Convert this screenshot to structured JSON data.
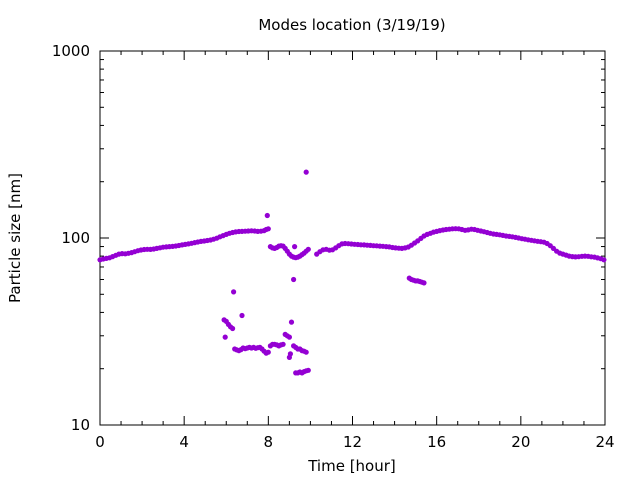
{
  "chart_data": {
    "type": "scatter",
    "title": "Modes location (3/19/19)",
    "xlabel": "Time [hour]",
    "ylabel": "Particle size [nm]",
    "xlim": [
      0,
      24
    ],
    "ylim": [
      10,
      1000
    ],
    "yscale": "log",
    "xticks": [
      0,
      4,
      8,
      12,
      16,
      20,
      24
    ],
    "yticks": [
      10,
      100,
      1000
    ],
    "grid": false,
    "legend": "none",
    "marker_color": "#9400D3",
    "series": [
      {
        "points": [
          [
            0.0,
            76.5
          ],
          [
            0.15,
            77.2
          ],
          [
            0.3,
            77.8
          ],
          [
            0.45,
            78.4
          ],
          [
            0.6,
            79.5
          ],
          [
            0.75,
            80.8
          ],
          [
            0.9,
            82.0
          ],
          [
            1.05,
            82.5
          ],
          [
            1.2,
            82.3
          ],
          [
            1.35,
            82.8
          ],
          [
            1.5,
            83.5
          ],
          [
            1.65,
            84.5
          ],
          [
            1.8,
            85.5
          ],
          [
            1.95,
            86.3
          ],
          [
            2.1,
            86.8
          ],
          [
            2.25,
            87.0
          ],
          [
            2.4,
            86.9
          ],
          [
            2.55,
            87.3
          ],
          [
            2.7,
            88.0
          ],
          [
            2.85,
            88.6
          ],
          [
            3.0,
            89.3
          ],
          [
            3.15,
            89.6
          ],
          [
            3.3,
            89.9
          ],
          [
            3.45,
            90.2
          ],
          [
            3.6,
            90.6
          ],
          [
            3.75,
            91.2
          ],
          [
            3.9,
            91.8
          ],
          [
            4.05,
            92.4
          ],
          [
            4.2,
            93.0
          ],
          [
            4.35,
            93.7
          ],
          [
            4.5,
            94.5
          ],
          [
            4.65,
            95.2
          ],
          [
            4.8,
            95.9
          ],
          [
            4.95,
            96.4
          ],
          [
            5.1,
            97.0
          ],
          [
            5.25,
            97.6
          ],
          [
            5.4,
            98.5
          ],
          [
            5.55,
            99.8
          ],
          [
            5.7,
            101.5
          ],
          [
            5.85,
            103.0
          ],
          [
            6.0,
            104.5
          ],
          [
            6.15,
            106.0
          ],
          [
            6.3,
            107.0
          ],
          [
            6.45,
            107.8
          ],
          [
            6.6,
            108.3
          ],
          [
            6.75,
            108.5
          ],
          [
            6.9,
            108.8
          ],
          [
            7.05,
            109.0
          ],
          [
            7.2,
            109.3
          ],
          [
            7.35,
            109.0
          ],
          [
            7.5,
            108.5
          ],
          [
            7.65,
            108.8
          ],
          [
            7.8,
            109.5
          ],
          [
            7.9,
            111.0
          ],
          [
            8.0,
            112.0
          ],
          [
            8.1,
            90.0
          ],
          [
            8.2,
            88.5
          ],
          [
            8.3,
            88.0
          ],
          [
            8.4,
            89.0
          ],
          [
            8.5,
            90.5
          ],
          [
            8.6,
            91.0
          ],
          [
            8.7,
            90.5
          ],
          [
            8.8,
            88.0
          ],
          [
            8.9,
            85.0
          ],
          [
            9.0,
            82.0
          ],
          [
            9.1,
            80.0
          ],
          [
            9.2,
            79.0
          ],
          [
            9.3,
            78.5
          ],
          [
            9.4,
            79.0
          ],
          [
            9.5,
            80.0
          ],
          [
            9.6,
            81.5
          ],
          [
            9.7,
            83.0
          ],
          [
            9.8,
            85.0
          ],
          [
            9.9,
            87.0
          ],
          [
            10.3,
            82.0
          ],
          [
            10.45,
            84.5
          ],
          [
            10.6,
            86.5
          ],
          [
            10.75,
            87.0
          ],
          [
            10.9,
            86.0
          ],
          [
            11.05,
            86.5
          ],
          [
            11.2,
            88.5
          ],
          [
            11.35,
            91.0
          ],
          [
            11.5,
            93.0
          ],
          [
            11.65,
            93.5
          ],
          [
            11.8,
            93.2
          ],
          [
            11.95,
            92.9
          ],
          [
            12.1,
            92.5
          ],
          [
            12.25,
            92.3
          ],
          [
            12.4,
            92.0
          ],
          [
            12.55,
            91.8
          ],
          [
            12.7,
            91.5
          ],
          [
            12.85,
            91.3
          ],
          [
            13.0,
            91.0
          ],
          [
            13.15,
            90.8
          ],
          [
            13.3,
            90.5
          ],
          [
            13.45,
            90.3
          ],
          [
            13.6,
            90.0
          ],
          [
            13.75,
            89.6
          ],
          [
            13.9,
            89.0
          ],
          [
            14.05,
            88.5
          ],
          [
            14.2,
            88.2
          ],
          [
            14.35,
            88.0
          ],
          [
            14.5,
            88.5
          ],
          [
            14.65,
            89.5
          ],
          [
            14.8,
            91.5
          ],
          [
            14.95,
            94.0
          ],
          [
            15.1,
            96.5
          ],
          [
            15.25,
            99.5
          ],
          [
            15.4,
            102.5
          ],
          [
            15.55,
            104.5
          ],
          [
            15.7,
            106.0
          ],
          [
            15.85,
            107.5
          ],
          [
            16.0,
            108.5
          ],
          [
            16.15,
            109.5
          ],
          [
            16.3,
            110.3
          ],
          [
            16.45,
            111.0
          ],
          [
            16.6,
            111.5
          ],
          [
            16.75,
            112.0
          ],
          [
            16.9,
            112.2
          ],
          [
            17.05,
            112.0
          ],
          [
            17.2,
            111.0
          ],
          [
            17.35,
            110.0
          ],
          [
            17.5,
            110.5
          ],
          [
            17.65,
            111.5
          ],
          [
            17.8,
            111.0
          ],
          [
            17.95,
            110.0
          ],
          [
            18.1,
            109.0
          ],
          [
            18.25,
            108.0
          ],
          [
            18.4,
            107.0
          ],
          [
            18.55,
            106.0
          ],
          [
            18.7,
            105.0
          ],
          [
            18.85,
            104.5
          ],
          [
            19.0,
            104.0
          ],
          [
            19.15,
            103.2
          ],
          [
            19.3,
            102.5
          ],
          [
            19.45,
            102.0
          ],
          [
            19.6,
            101.5
          ],
          [
            19.75,
            100.8
          ],
          [
            19.9,
            100.0
          ],
          [
            20.05,
            99.2
          ],
          [
            20.2,
            98.5
          ],
          [
            20.35,
            97.8
          ],
          [
            20.5,
            97.2
          ],
          [
            20.65,
            96.6
          ],
          [
            20.8,
            96.0
          ],
          [
            20.95,
            95.5
          ],
          [
            21.1,
            95.0
          ],
          [
            21.25,
            93.5
          ],
          [
            21.4,
            91.0
          ],
          [
            21.55,
            88.0
          ],
          [
            21.7,
            85.0
          ],
          [
            21.85,
            83.0
          ],
          [
            22.0,
            82.0
          ],
          [
            22.15,
            81.0
          ],
          [
            22.3,
            80.0
          ],
          [
            22.45,
            79.5
          ],
          [
            22.6,
            79.2
          ],
          [
            22.75,
            79.4
          ],
          [
            22.9,
            79.8
          ],
          [
            23.05,
            80.0
          ],
          [
            23.2,
            79.8
          ],
          [
            23.35,
            79.3
          ],
          [
            23.5,
            79.0
          ],
          [
            23.65,
            78.3
          ],
          [
            23.8,
            77.5
          ],
          [
            23.95,
            76.5
          ],
          [
            5.9,
            36.5
          ],
          [
            6.0,
            35.8
          ],
          [
            6.1,
            34.5
          ],
          [
            6.2,
            33.5
          ],
          [
            6.3,
            32.8
          ],
          [
            6.35,
            51.5
          ],
          [
            6.75,
            38.5
          ],
          [
            5.95,
            29.5
          ],
          [
            6.4,
            25.5
          ],
          [
            6.5,
            25.2
          ],
          [
            6.6,
            25.0
          ],
          [
            6.7,
            25.3
          ],
          [
            6.8,
            25.8
          ],
          [
            6.9,
            25.6
          ],
          [
            7.0,
            25.8
          ],
          [
            7.1,
            26.0
          ],
          [
            7.2,
            25.8
          ],
          [
            7.3,
            26.0
          ],
          [
            7.4,
            25.7
          ],
          [
            7.5,
            25.9
          ],
          [
            7.6,
            26.0
          ],
          [
            7.7,
            25.5
          ],
          [
            7.8,
            24.8
          ],
          [
            7.9,
            24.2
          ],
          [
            8.0,
            24.5
          ],
          [
            8.1,
            26.5
          ],
          [
            8.2,
            27.0
          ],
          [
            8.3,
            27.0
          ],
          [
            8.4,
            26.8
          ],
          [
            8.5,
            26.5
          ],
          [
            8.6,
            26.8
          ],
          [
            8.7,
            27.0
          ],
          [
            8.8,
            30.5
          ],
          [
            8.9,
            30.0
          ],
          [
            9.0,
            29.5
          ],
          [
            9.1,
            35.5
          ],
          [
            9.0,
            23.0
          ],
          [
            9.05,
            24.0
          ],
          [
            9.2,
            26.5
          ],
          [
            9.3,
            26.0
          ],
          [
            9.4,
            25.5
          ],
          [
            9.5,
            25.5
          ],
          [
            9.6,
            25.0
          ],
          [
            9.7,
            24.8
          ],
          [
            9.8,
            24.5
          ],
          [
            9.2,
            60.0
          ],
          [
            9.25,
            90.0
          ],
          [
            9.3,
            19.0
          ],
          [
            9.4,
            19.0
          ],
          [
            9.5,
            19.2
          ],
          [
            9.6,
            19.0
          ],
          [
            9.7,
            19.3
          ],
          [
            9.8,
            19.5
          ],
          [
            9.9,
            19.6
          ],
          [
            9.8,
            225.0
          ],
          [
            7.95,
            132.0
          ],
          [
            14.7,
            61.0
          ],
          [
            14.8,
            60.0
          ],
          [
            14.9,
            59.5
          ],
          [
            15.0,
            59.0
          ],
          [
            15.1,
            59.0
          ],
          [
            15.2,
            58.5
          ],
          [
            15.3,
            58.0
          ],
          [
            15.4,
            57.5
          ]
        ]
      }
    ]
  }
}
